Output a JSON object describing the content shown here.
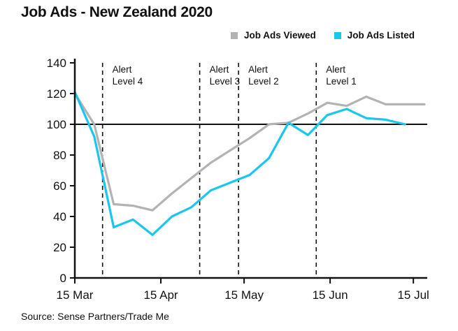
{
  "chart_data": {
    "type": "line",
    "title": "Job Ads - New Zealand 2020",
    "source": "Source: Sense Partners/Trade Me",
    "x_ticks": [
      "15 Mar",
      "15 Apr",
      "15 May",
      "15 Jun",
      "15 Jul"
    ],
    "x_tick_positions": [
      0,
      31,
      61,
      92,
      122
    ],
    "y_ticks": [
      "0",
      "20",
      "40",
      "60",
      "80",
      "100",
      "120",
      "140"
    ],
    "ylim": [
      0,
      140
    ],
    "xlim": [
      0,
      127
    ],
    "reference_line": 100,
    "grid": false,
    "legend_position": "top-right",
    "series": [
      {
        "name": "Job Ads Viewed",
        "color": "#b3b3b3",
        "x": [
          0,
          7,
          14,
          21,
          28,
          35,
          42,
          49,
          56,
          63,
          70,
          77,
          84,
          91,
          98,
          105,
          112,
          119,
          126
        ],
        "values": [
          120,
          100,
          48,
          47,
          44,
          55,
          65,
          75,
          83,
          91,
          100,
          101,
          107,
          114,
          112,
          118,
          113,
          113,
          113
        ]
      },
      {
        "name": "Job Ads Listed",
        "color": "#19c6ee",
        "x": [
          0,
          7,
          14,
          21,
          28,
          35,
          42,
          49,
          56,
          63,
          70,
          77,
          84,
          91,
          98,
          105,
          112,
          119
        ],
        "values": [
          121,
          92,
          33,
          38,
          28,
          40,
          46,
          57,
          62,
          67,
          78,
          101,
          93,
          106,
          110,
          104,
          103,
          100
        ]
      }
    ],
    "annotations": [
      {
        "label_line1": "Alert",
        "label_line2": "Level 4",
        "x": 10
      },
      {
        "label_line1": "Alert",
        "label_line2": "Level 3",
        "x": 45
      },
      {
        "label_line1": "Alert",
        "label_line2": "Level 2",
        "x": 59
      },
      {
        "label_line1": "Alert",
        "label_line2": "Level 1",
        "x": 87
      }
    ]
  }
}
